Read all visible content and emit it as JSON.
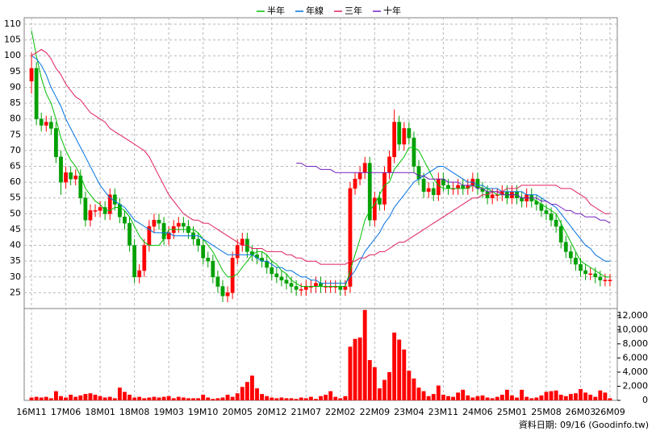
{
  "chart_data": {
    "type": "candlestick",
    "categories": [
      "16M11",
      null,
      null,
      null,
      null,
      null,
      null,
      "17M06",
      null,
      null,
      null,
      null,
      null,
      null,
      "18M01",
      null,
      null,
      null,
      null,
      null,
      null,
      "18M08",
      null,
      null,
      null,
      null,
      null,
      null,
      "19M03",
      null,
      null,
      null,
      null,
      null,
      null,
      "19M10",
      null,
      null,
      null,
      null,
      null,
      null,
      "20M05",
      null,
      null,
      null,
      null,
      null,
      null,
      "20M12",
      null,
      null,
      null,
      null,
      null,
      null,
      "21M07",
      null,
      null,
      null,
      null,
      null,
      null,
      "22M02",
      null,
      null,
      null,
      null,
      null,
      null,
      "22M09",
      null,
      null,
      null,
      null,
      null,
      null,
      "23M04",
      null,
      null,
      null,
      null,
      null,
      null,
      "23M11",
      null,
      null,
      null,
      null,
      null,
      null,
      "24M06",
      null,
      null,
      null,
      null,
      null,
      null,
      "25M01",
      null,
      null,
      null,
      null,
      null,
      null,
      "25M08",
      null,
      null,
      null,
      null,
      null,
      null,
      "26M03",
      null,
      null,
      null,
      null,
      null,
      "26M09"
    ],
    "open": [
      92,
      96,
      80,
      78,
      79,
      77,
      68,
      60,
      63,
      61,
      62,
      55,
      48,
      51,
      51,
      52,
      50,
      56,
      53,
      49,
      47,
      40,
      30,
      32,
      40,
      46,
      48,
      47,
      42,
      44,
      46,
      47,
      46,
      44,
      42,
      40,
      36,
      35,
      30,
      27,
      24,
      25,
      36,
      40,
      42,
      38,
      37,
      36,
      35,
      33,
      31,
      30,
      29,
      28,
      27,
      26,
      26,
      27,
      27,
      28,
      27,
      27,
      27,
      27,
      26,
      27,
      58,
      61,
      63,
      66,
      48,
      55,
      53,
      63,
      68,
      79,
      72,
      77,
      74,
      65,
      61,
      57,
      58,
      56,
      61,
      59,
      58,
      58,
      59,
      58,
      59,
      61,
      58,
      57,
      55,
      56,
      56,
      57,
      55,
      57,
      55,
      54,
      56,
      54,
      53,
      51,
      50,
      48,
      46,
      41,
      38,
      36,
      34,
      32,
      31,
      31,
      30,
      29,
      29
    ],
    "high": [
      101,
      98,
      82,
      81,
      81,
      79,
      70,
      65,
      65,
      64,
      64,
      57,
      53,
      53,
      54,
      54,
      58,
      58,
      55,
      51,
      49,
      42,
      34,
      42,
      48,
      50,
      50,
      49,
      46,
      48,
      49,
      49,
      48,
      46,
      44,
      42,
      38,
      37,
      32,
      29,
      27,
      38,
      42,
      44,
      44,
      40,
      39,
      38,
      37,
      35,
      33,
      32,
      31,
      30,
      29,
      28,
      29,
      29,
      30,
      30,
      29,
      29,
      29,
      29,
      29,
      60,
      63,
      65,
      68,
      68,
      57,
      57,
      65,
      70,
      83,
      81,
      79,
      79,
      76,
      67,
      63,
      60,
      60,
      63,
      63,
      61,
      60,
      61,
      61,
      61,
      63,
      63,
      60,
      59,
      58,
      58,
      59,
      59,
      59,
      59,
      57,
      58,
      58,
      56,
      55,
      53,
      52,
      50,
      48,
      43,
      40,
      38,
      36,
      34,
      33,
      33,
      32,
      31,
      31
    ],
    "low": [
      88,
      78,
      76,
      76,
      75,
      66,
      56,
      58,
      59,
      59,
      53,
      46,
      46,
      49,
      49,
      48,
      48,
      51,
      47,
      45,
      38,
      28,
      28,
      30,
      38,
      44,
      45,
      40,
      40,
      42,
      44,
      44,
      42,
      40,
      38,
      34,
      33,
      28,
      25,
      22,
      22,
      23,
      34,
      38,
      36,
      35,
      34,
      33,
      31,
      29,
      28,
      27,
      26,
      25,
      24,
      24,
      24,
      25,
      25,
      25,
      25,
      25,
      25,
      24,
      24,
      25,
      56,
      59,
      61,
      46,
      46,
      51,
      51,
      61,
      66,
      70,
      70,
      72,
      63,
      59,
      55,
      55,
      54,
      54,
      57,
      56,
      56,
      56,
      56,
      56,
      57,
      56,
      55,
      53,
      53,
      54,
      54,
      53,
      53,
      53,
      52,
      52,
      52,
      51,
      49,
      48,
      46,
      44,
      39,
      36,
      34,
      32,
      30,
      29,
      29,
      28,
      27,
      27,
      27
    ],
    "close": [
      96,
      80,
      78,
      79,
      77,
      68,
      60,
      63,
      61,
      62,
      55,
      48,
      51,
      51,
      52,
      50,
      56,
      53,
      49,
      47,
      40,
      30,
      32,
      40,
      46,
      48,
      47,
      42,
      44,
      46,
      47,
      46,
      44,
      42,
      40,
      36,
      35,
      30,
      27,
      24,
      25,
      36,
      40,
      42,
      38,
      37,
      36,
      35,
      33,
      31,
      30,
      29,
      28,
      27,
      26,
      26,
      27,
      27,
      28,
      27,
      27,
      27,
      27,
      26,
      27,
      58,
      61,
      63,
      66,
      48,
      55,
      53,
      63,
      68,
      79,
      72,
      77,
      74,
      65,
      61,
      57,
      58,
      56,
      61,
      59,
      58,
      58,
      59,
      58,
      59,
      61,
      58,
      57,
      55,
      56,
      56,
      57,
      55,
      57,
      55,
      54,
      56,
      54,
      53,
      51,
      50,
      48,
      46,
      41,
      38,
      36,
      34,
      32,
      31,
      31,
      30,
      29,
      29,
      29
    ],
    "volume": [
      400,
      500,
      400,
      500,
      300,
      1300,
      600,
      400,
      800,
      500,
      700,
      900,
      1000,
      800,
      600,
      400,
      500,
      300,
      1800,
      1200,
      800,
      400,
      500,
      300,
      400,
      500,
      400,
      500,
      600,
      300,
      500,
      400,
      300,
      300,
      300,
      800,
      400,
      200,
      300,
      400,
      800,
      500,
      1000,
      1900,
      2600,
      3500,
      1700,
      900,
      600,
      400,
      300,
      400,
      300,
      300,
      200,
      400,
      300,
      500,
      200,
      600,
      800,
      1300,
      500,
      300,
      600,
      7600,
      8700,
      8900,
      12800,
      5700,
      4700,
      1700,
      2900,
      4000,
      9600,
      8600,
      7200,
      4200,
      3100,
      1800,
      1300,
      600,
      900,
      2100,
      800,
      600,
      500,
      1100,
      1500,
      700,
      400,
      600,
      700,
      400,
      300,
      500,
      800,
      1500,
      700,
      400,
      1500,
      500,
      300,
      400,
      700,
      1200,
      1300,
      1400,
      800,
      600,
      900,
      1000,
      1600,
      1100,
      800,
      500,
      1400,
      1100,
      300
    ],
    "up_color": "#ff0000",
    "down_color": "#00a000",
    "volume_color": "#ff0000",
    "series": [
      {
        "name": "半年",
        "color": "#00c000",
        "values": [
          108,
          100,
          93,
          88,
          85,
          80,
          74,
          70,
          67,
          65,
          62,
          58,
          56,
          54,
          53,
          51,
          51,
          52,
          52,
          51,
          49,
          46,
          43,
          41,
          40,
          40,
          40,
          42,
          45,
          45,
          45,
          45,
          45,
          45,
          44,
          42,
          40,
          38,
          35,
          32,
          30,
          30,
          31,
          33,
          35,
          37,
          38,
          38,
          37,
          35,
          34,
          32,
          31,
          29,
          28,
          27,
          27,
          27,
          27,
          27,
          27,
          27,
          27,
          27,
          27,
          32,
          37,
          42,
          48,
          51,
          53,
          56,
          59,
          60,
          64,
          66,
          68,
          71,
          71,
          70,
          67,
          64,
          61,
          59,
          58,
          58,
          58,
          58,
          58,
          58,
          59,
          59,
          58,
          58,
          57,
          56,
          56,
          56,
          56,
          56,
          55,
          55,
          55,
          54,
          53,
          52,
          51,
          50,
          47,
          44,
          41,
          38,
          35,
          34,
          33,
          32,
          31,
          30,
          30
        ]
      },
      {
        "name": "年線",
        "color": "#0070e0",
        "values": [
          100,
          99,
          97,
          94,
          90,
          87,
          84,
          80,
          77,
          74,
          71,
          68,
          65,
          62,
          59,
          57,
          55,
          54,
          53,
          52,
          50,
          48,
          47,
          46,
          45,
          44,
          44,
          44,
          44,
          43,
          43,
          43,
          43,
          43,
          43,
          42,
          41,
          40,
          39,
          38,
          37,
          37,
          37,
          37,
          37,
          37,
          36,
          35,
          35,
          34,
          33,
          33,
          32,
          32,
          31,
          30,
          30,
          29,
          29,
          28,
          28,
          28,
          28,
          28,
          28,
          30,
          32,
          35,
          38,
          40,
          42,
          44,
          47,
          49,
          52,
          54,
          56,
          58,
          60,
          61,
          62,
          63,
          64,
          65,
          65,
          64,
          63,
          62,
          61,
          60,
          60,
          59,
          59,
          58,
          58,
          58,
          57,
          57,
          57,
          57,
          57,
          56,
          56,
          56,
          55,
          54,
          53,
          52,
          50,
          48,
          46,
          44,
          42,
          40,
          39,
          37,
          36,
          35,
          35
        ]
      },
      {
        "name": "三年",
        "color": "#e0205a",
        "values": [
          100,
          101,
          102,
          101,
          99,
          96,
          94,
          91,
          89,
          87,
          86,
          84,
          82,
          81,
          80,
          79,
          77,
          76,
          75,
          74,
          73,
          72,
          71,
          70,
          68,
          65,
          62,
          59,
          56,
          54,
          52,
          50,
          49,
          48,
          48,
          47,
          47,
          46,
          45,
          44,
          43,
          42,
          41,
          40,
          40,
          39,
          39,
          39,
          38,
          38,
          38,
          38,
          37,
          37,
          36,
          36,
          35,
          35,
          35,
          34,
          34,
          34,
          34,
          34,
          34,
          35,
          35,
          36,
          36,
          37,
          37,
          38,
          38,
          39,
          40,
          41,
          41,
          42,
          43,
          44,
          45,
          46,
          47,
          48,
          49,
          50,
          51,
          52,
          53,
          54,
          55,
          55,
          56,
          56,
          57,
          57,
          57,
          58,
          58,
          58,
          59,
          59,
          59,
          59,
          59,
          59,
          59,
          59,
          58,
          58,
          58,
          57,
          56,
          55,
          53,
          52,
          51,
          50,
          50
        ]
      },
      {
        "name": "十年",
        "color": "#7020c0",
        "values": [
          null,
          null,
          null,
          null,
          null,
          null,
          null,
          null,
          null,
          null,
          null,
          null,
          null,
          null,
          null,
          null,
          null,
          null,
          null,
          null,
          null,
          null,
          null,
          null,
          null,
          null,
          null,
          null,
          null,
          null,
          null,
          null,
          null,
          null,
          null,
          null,
          null,
          null,
          null,
          null,
          null,
          null,
          null,
          null,
          null,
          null,
          null,
          null,
          null,
          null,
          null,
          null,
          null,
          null,
          66,
          66,
          65,
          65,
          65,
          64,
          64,
          64,
          63,
          63,
          63,
          63,
          63,
          63,
          63,
          63,
          63,
          63,
          63,
          63,
          63,
          63,
          63,
          63,
          63,
          62,
          62,
          61,
          61,
          61,
          61,
          60,
          60,
          60,
          59,
          59,
          59,
          58,
          58,
          57,
          57,
          57,
          56,
          56,
          56,
          56,
          55,
          55,
          55,
          55,
          54,
          54,
          53,
          53,
          52,
          51,
          51,
          50,
          50,
          49,
          49,
          49,
          48,
          48,
          47
        ]
      }
    ],
    "ylim": [
      20,
      110
    ],
    "yticks": [
      25,
      30,
      35,
      40,
      45,
      50,
      55,
      60,
      65,
      70,
      75,
      80,
      85,
      90,
      95,
      100,
      105,
      110
    ],
    "y2lim": [
      0,
      13000
    ],
    "y2ticks": [
      0,
      {
        "value": 2000,
        "label": "2,000"
      },
      {
        "value": 4000,
        "label": "4,000"
      },
      {
        "value": 6000,
        "label": "6,000"
      },
      {
        "value": 8000,
        "label": "8,000"
      },
      {
        "value": 10000,
        "label": "10,000"
      },
      {
        "value": 12000,
        "label": "12,000"
      }
    ],
    "grid": true,
    "source": "資料日期: 09/16 (Goodinfo.tw)"
  }
}
